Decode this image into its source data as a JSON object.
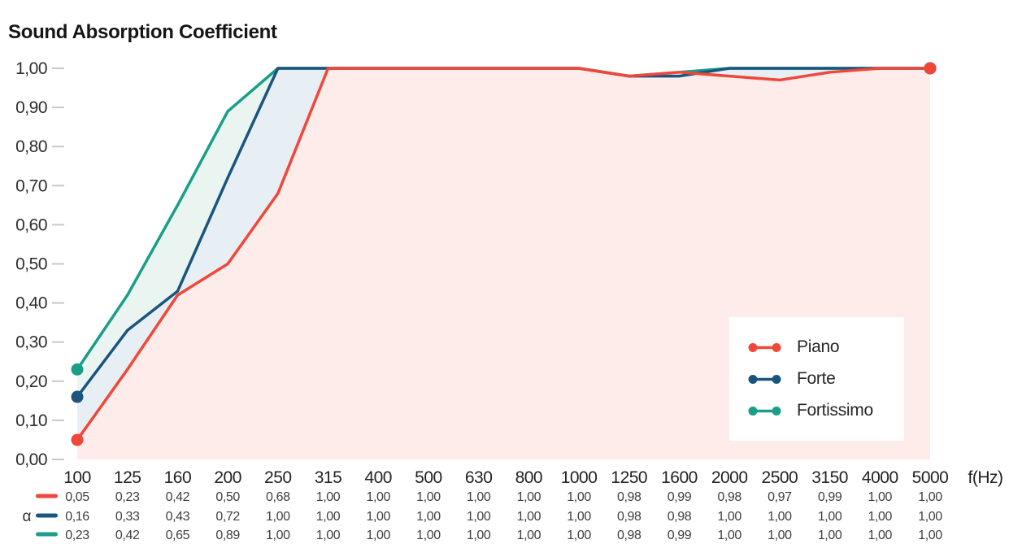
{
  "title": "Sound Absorption Coefficient",
  "axes": {
    "y_tick_labels": [
      "1,00",
      "0,90",
      "0,80",
      "0,70",
      "0,60",
      "0,50",
      "0,40",
      "0,30",
      "0,20",
      "0,10",
      "0,00"
    ],
    "x_unit_label": "f(Hz)",
    "alpha_label": "α"
  },
  "chart_data": {
    "type": "line",
    "title": "Sound Absorption Coefficient",
    "xlabel": "f(Hz)",
    "ylabel": "α",
    "ylim": [
      0,
      1
    ],
    "grid": false,
    "legend_position": "inside-right",
    "decimal_separator": ",",
    "categories": [
      100,
      125,
      160,
      200,
      250,
      315,
      400,
      500,
      630,
      800,
      1000,
      1250,
      1600,
      2000,
      2500,
      3150,
      4000,
      5000
    ],
    "series": [
      {
        "name": "Piano",
        "color": "#F0473A",
        "fill": "#FDECEA",
        "values": [
          0.05,
          0.23,
          0.42,
          0.5,
          0.68,
          1.0,
          1.0,
          1.0,
          1.0,
          1.0,
          1.0,
          0.98,
          0.99,
          0.98,
          0.97,
          0.99,
          1.0,
          1.0
        ]
      },
      {
        "name": "Forte",
        "color": "#1B557F",
        "fill": "#E8EFF4",
        "values": [
          0.16,
          0.33,
          0.43,
          0.72,
          1.0,
          1.0,
          1.0,
          1.0,
          1.0,
          1.0,
          1.0,
          0.98,
          0.98,
          1.0,
          1.0,
          1.0,
          1.0,
          1.0
        ]
      },
      {
        "name": "Fortissimo",
        "color": "#1A9E87",
        "fill": "#EAF5F1",
        "values": [
          0.23,
          0.42,
          0.65,
          0.89,
          1.0,
          1.0,
          1.0,
          1.0,
          1.0,
          1.0,
          1.0,
          0.98,
          0.99,
          1.0,
          1.0,
          1.0,
          1.0,
          1.0
        ]
      }
    ]
  }
}
